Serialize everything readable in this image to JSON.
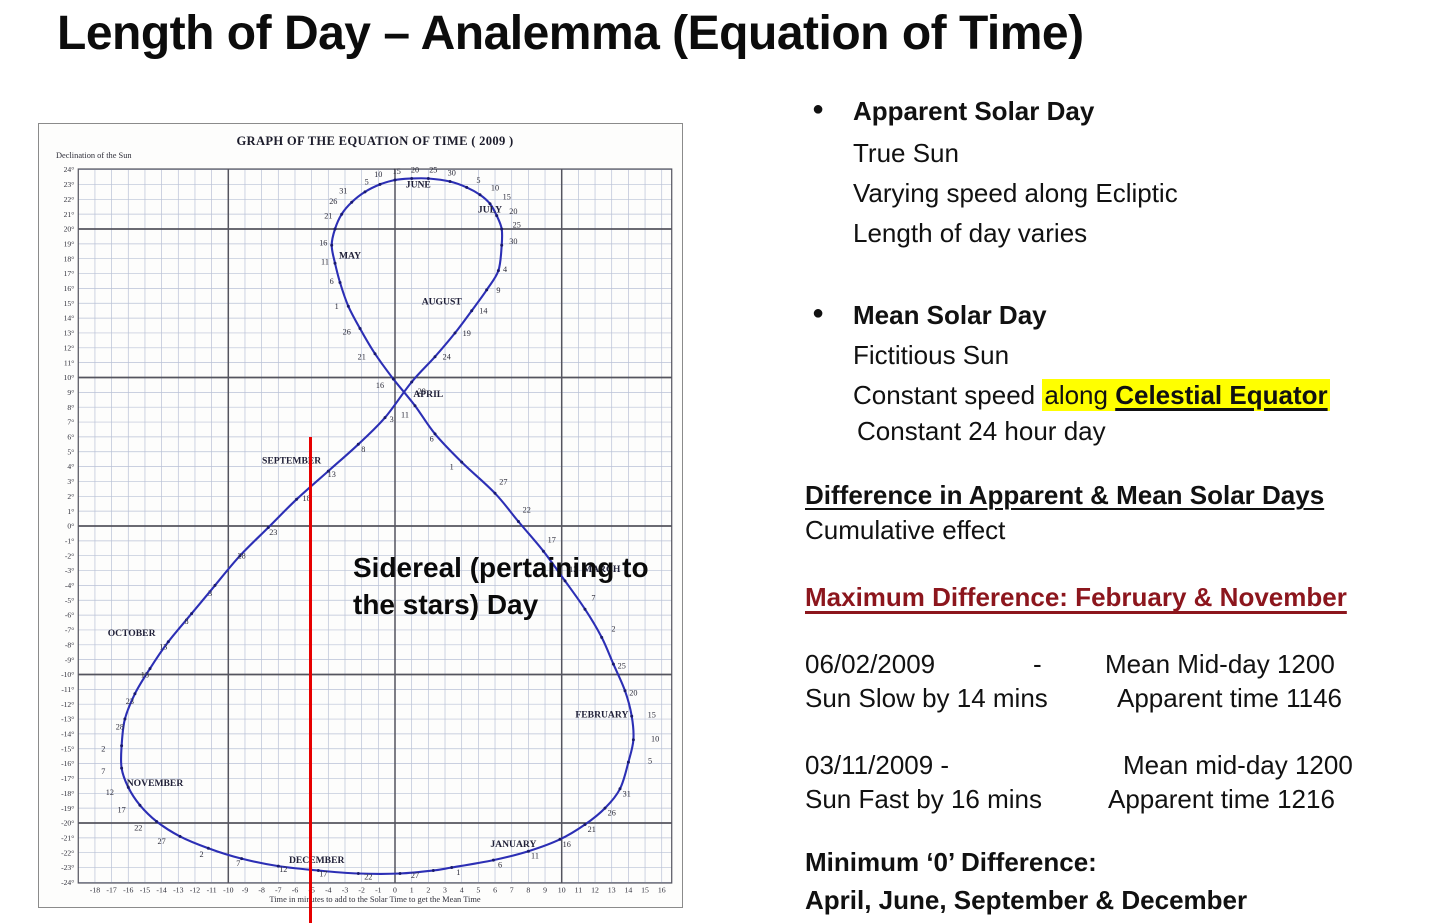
{
  "slide": {
    "title": "Length of Day – Analemma (Equation of Time)"
  },
  "overlay": {
    "sidereal_line1": "Sidereal (pertaining to",
    "sidereal_line2": "the stars) Day"
  },
  "colors": {
    "curve_blue": "#2c2fb5",
    "curve_dot": "#191a6e",
    "red_line": "#e60000",
    "maroon_heading": "#8c161d",
    "highlight_yellow": "#ffff00",
    "grid_minor": "#b9c1d6",
    "grid_major": "#54545e"
  },
  "chart_data": {
    "type": "line",
    "title": "GRAPH OF THE EQUATION OF TIME ( 2009 )",
    "ylabel": "Declination of the Sun",
    "xlabel": "Time in minutes to add to the Solar Time to get the Mean Time",
    "xlim": [
      -19,
      16.6
    ],
    "ylim": [
      -24.04,
      24.04
    ],
    "grid": true,
    "legend": "none",
    "x_ticks": [
      -18,
      -17,
      -16,
      -15,
      -14,
      -13,
      -12,
      -11,
      -10,
      -9,
      -8,
      -7,
      -6,
      -5,
      -4,
      -3,
      -2,
      -1,
      0,
      1,
      2,
      3,
      4,
      5,
      6,
      7,
      8,
      9,
      10,
      11,
      12,
      13,
      14,
      15,
      16
    ],
    "y_ticks": [
      24,
      23,
      22,
      21,
      20,
      19,
      18,
      17,
      16,
      15,
      14,
      13,
      12,
      11,
      10,
      9,
      8,
      7,
      6,
      5,
      4,
      3,
      2,
      1,
      0,
      -1,
      -2,
      -3,
      -4,
      -5,
      -6,
      -7,
      -8,
      -9,
      -10,
      -11,
      -12,
      -13,
      -14,
      -15,
      -16,
      -17,
      -18,
      -19,
      -20,
      -21,
      -22,
      -23,
      -24
    ],
    "x_major": [
      -10,
      0,
      10
    ],
    "y_major": [
      -20,
      -10,
      0,
      10,
      20
    ],
    "annotations": {
      "red_line_x": -5
    },
    "series": [
      {
        "name": "Analemma: Sun declination vs equation of time (2009)",
        "closed": true,
        "points": [
          {
            "m": "Jan",
            "d": 1,
            "x": 3.4,
            "y": -23
          },
          {
            "m": "Jan",
            "d": 6,
            "x": 5.9,
            "y": -22.5
          },
          {
            "m": "Jan",
            "d": 11,
            "x": 8,
            "y": -21.9
          },
          {
            "m": "Jan",
            "d": 16,
            "x": 9.9,
            "y": -21.1
          },
          {
            "m": "Jan",
            "d": 21,
            "x": 11.4,
            "y": -20.1
          },
          {
            "m": "Jan",
            "d": 26,
            "x": 12.6,
            "y": -19
          },
          {
            "m": "Jan",
            "d": 31,
            "x": 13.5,
            "y": -17.7
          },
          {
            "m": "Feb",
            "d": 5,
            "x": 14,
            "y": -15.9
          },
          {
            "m": "Feb",
            "d": 10,
            "x": 14.3,
            "y": -14.4
          },
          {
            "m": "Feb",
            "d": 15,
            "x": 14.2,
            "y": -12.8
          },
          {
            "m": "Feb",
            "d": 20,
            "x": 13.8,
            "y": -11.1
          },
          {
            "m": "Feb",
            "d": 25,
            "x": 13.1,
            "y": -9.3
          },
          {
            "m": "Mar",
            "d": 2,
            "x": 12.4,
            "y": -7.5
          },
          {
            "m": "Mar",
            "d": 7,
            "x": 11.4,
            "y": -5.6
          },
          {
            "m": "Mar",
            "d": 12,
            "x": 10.2,
            "y": -3.7
          },
          {
            "m": "Mar",
            "d": 17,
            "x": 8.9,
            "y": -1.7
          },
          {
            "m": "Mar",
            "d": 22,
            "x": 7.4,
            "y": 0.3
          },
          {
            "m": "Mar",
            "d": 27,
            "x": 6,
            "y": 2.2
          },
          {
            "m": "Apr",
            "d": 1,
            "x": 4,
            "y": 4.3
          },
          {
            "m": "Apr",
            "d": 6,
            "x": 2.4,
            "y": 6.2
          },
          {
            "m": "Apr",
            "d": 11,
            "x": 1.2,
            "y": 8.1
          },
          {
            "m": "Apr",
            "d": 16,
            "x": -0.1,
            "y": 9.9
          },
          {
            "m": "Apr",
            "d": 21,
            "x": -1.2,
            "y": 11.6
          },
          {
            "m": "Apr",
            "d": 26,
            "x": -2.1,
            "y": 13.3
          },
          {
            "m": "May",
            "d": 1,
            "x": -2.8,
            "y": 14.8
          },
          {
            "m": "May",
            "d": 6,
            "x": -3.3,
            "y": 16.4
          },
          {
            "m": "May",
            "d": 11,
            "x": -3.6,
            "y": 17.7
          },
          {
            "m": "May",
            "d": 16,
            "x": -3.8,
            "y": 18.9
          },
          {
            "m": "May",
            "d": 21,
            "x": -3.6,
            "y": 20
          },
          {
            "m": "May",
            "d": 26,
            "x": -3.2,
            "y": 21
          },
          {
            "m": "May",
            "d": 31,
            "x": -2.6,
            "y": 21.8
          },
          {
            "m": "Jun",
            "d": 5,
            "x": -1.8,
            "y": 22.5
          },
          {
            "m": "Jun",
            "d": 10,
            "x": -0.9,
            "y": 23
          },
          {
            "m": "Jun",
            "d": 15,
            "x": 0,
            "y": 23.3
          },
          {
            "m": "Jun",
            "d": 20,
            "x": 1,
            "y": 23.4
          },
          {
            "m": "Jun",
            "d": 25,
            "x": 2,
            "y": 23.4
          },
          {
            "m": "Jun",
            "d": 30,
            "x": 3.3,
            "y": 23.2
          },
          {
            "m": "Jul",
            "d": 5,
            "x": 4.3,
            "y": 22.8
          },
          {
            "m": "Jul",
            "d": 10,
            "x": 5.1,
            "y": 22.3
          },
          {
            "m": "Jul",
            "d": 15,
            "x": 5.7,
            "y": 21.7
          },
          {
            "m": "Jul",
            "d": 20,
            "x": 6.1,
            "y": 20.9
          },
          {
            "m": "Jul",
            "d": 25,
            "x": 6.4,
            "y": 20
          },
          {
            "m": "Jul",
            "d": 30,
            "x": 6.4,
            "y": 18.9
          },
          {
            "m": "Aug",
            "d": 4,
            "x": 6.2,
            "y": 17.2
          },
          {
            "m": "Aug",
            "d": 9,
            "x": 5.5,
            "y": 15.9
          },
          {
            "m": "Aug",
            "d": 14,
            "x": 4.6,
            "y": 14.5
          },
          {
            "m": "Aug",
            "d": 19,
            "x": 3.6,
            "y": 13
          },
          {
            "m": "Aug",
            "d": 24,
            "x": 2.4,
            "y": 11.4
          },
          {
            "m": "Aug",
            "d": 29,
            "x": 1,
            "y": 9.7
          },
          {
            "m": "Sep",
            "d": 3,
            "x": -0.6,
            "y": 7.3
          },
          {
            "m": "Sep",
            "d": 8,
            "x": -2.2,
            "y": 5.5
          },
          {
            "m": "Sep",
            "d": 13,
            "x": -4,
            "y": 3.7
          },
          {
            "m": "Sep",
            "d": 18,
            "x": -5.9,
            "y": 1.8
          },
          {
            "m": "Sep",
            "d": 23,
            "x": -7.6,
            "y": -0.1
          },
          {
            "m": "Sep",
            "d": 28,
            "x": -9.3,
            "y": -2
          },
          {
            "m": "Oct",
            "d": 3,
            "x": -10.8,
            "y": -4
          },
          {
            "m": "Oct",
            "d": 8,
            "x": -12.2,
            "y": -5.9
          },
          {
            "m": "Oct",
            "d": 13,
            "x": -13.6,
            "y": -7.8
          },
          {
            "m": "Oct",
            "d": 18,
            "x": -14.7,
            "y": -9.6
          },
          {
            "m": "Oct",
            "d": 23,
            "x": -15.6,
            "y": -11.3
          },
          {
            "m": "Oct",
            "d": 28,
            "x": -16.2,
            "y": -13
          },
          {
            "m": "Nov",
            "d": 2,
            "x": -16.4,
            "y": -14.8
          },
          {
            "m": "Nov",
            "d": 7,
            "x": -16.4,
            "y": -16.3
          },
          {
            "m": "Nov",
            "d": 12,
            "x": -16,
            "y": -17.6
          },
          {
            "m": "Nov",
            "d": 17,
            "x": -15.3,
            "y": -18.8
          },
          {
            "m": "Nov",
            "d": 22,
            "x": -14.3,
            "y": -19.9
          },
          {
            "m": "Nov",
            "d": 27,
            "x": -12.9,
            "y": -20.9
          },
          {
            "m": "Dec",
            "d": 2,
            "x": -11.2,
            "y": -21.7
          },
          {
            "m": "Dec",
            "d": 7,
            "x": -9.2,
            "y": -22.4
          },
          {
            "m": "Dec",
            "d": 12,
            "x": -7,
            "y": -22.9
          },
          {
            "m": "Dec",
            "d": 17,
            "x": -4.6,
            "y": -23.2
          },
          {
            "m": "Dec",
            "d": 22,
            "x": -2.2,
            "y": -23.4
          },
          {
            "m": "Dec",
            "d": 27,
            "x": 0.3,
            "y": -23.4
          },
          {
            "m": "Dec",
            "d": 31,
            "x": 2.3,
            "y": -23.2
          }
        ]
      }
    ],
    "month_labels": [
      {
        "t": "JANUARY",
        "x": 7.1,
        "y": -21.6
      },
      {
        "t": "FEBRUARY",
        "x": 14,
        "y": -12.9,
        "anchor": "end"
      },
      {
        "t": "MARCH",
        "x": 12.4,
        "y": -3.1
      },
      {
        "t": "APRIL",
        "x": 2,
        "y": 8.7
      },
      {
        "t": "MAY",
        "x": -2.7,
        "y": 18
      },
      {
        "t": "JUNE",
        "x": 1.4,
        "y": 22.8
      },
      {
        "t": "JULY",
        "x": 5.7,
        "y": 21.1
      },
      {
        "t": "AUGUST",
        "x": 2.8,
        "y": 14.9
      },
      {
        "t": "SEPTEMBER",
        "x": -6.2,
        "y": 4.2
      },
      {
        "t": "OCTOBER",
        "x": -15.8,
        "y": -7.4
      },
      {
        "t": "NOVEMBER",
        "x": -14.4,
        "y": -17.5
      },
      {
        "t": "DECEMBER",
        "x": -4.7,
        "y": -22.7
      }
    ],
    "day_labels": [
      {
        "t": "1",
        "x": 3.8,
        "y": -23.5
      },
      {
        "t": "6",
        "x": 6.3,
        "y": -23
      },
      {
        "t": "11",
        "x": 8.4,
        "y": -22.4
      },
      {
        "t": "16",
        "x": 10.3,
        "y": -21.6
      },
      {
        "t": "21",
        "x": 11.8,
        "y": -20.6
      },
      {
        "t": "26",
        "x": 13,
        "y": -19.5
      },
      {
        "t": "31",
        "x": 13.9,
        "y": -18.2
      },
      {
        "t": "5",
        "x": 15.3,
        "y": -16
      },
      {
        "t": "10",
        "x": 15.6,
        "y": -14.5
      },
      {
        "t": "15",
        "x": 15.4,
        "y": -12.9
      },
      {
        "t": "20",
        "x": 14.3,
        "y": -11.4
      },
      {
        "t": "25",
        "x": 13.6,
        "y": -9.6
      },
      {
        "t": "2",
        "x": 13.1,
        "y": -7.1
      },
      {
        "t": "7",
        "x": 11.9,
        "y": -5
      },
      {
        "t": "12",
        "x": 10.7,
        "y": -3.1
      },
      {
        "t": "17",
        "x": 9.4,
        "y": -1.1
      },
      {
        "t": "22",
        "x": 7.9,
        "y": 0.9
      },
      {
        "t": "27",
        "x": 6.5,
        "y": 2.8
      },
      {
        "t": "1",
        "x": 3.4,
        "y": 3.8
      },
      {
        "t": "6",
        "x": 2.2,
        "y": 5.7
      },
      {
        "t": "11",
        "x": 0.6,
        "y": 7.3
      },
      {
        "t": "16",
        "x": -0.9,
        "y": 9.3
      },
      {
        "t": "21",
        "x": -2,
        "y": 11.2
      },
      {
        "t": "26",
        "x": -2.9,
        "y": 12.9
      },
      {
        "t": "1",
        "x": -3.5,
        "y": 14.6
      },
      {
        "t": "6",
        "x": -3.8,
        "y": 16.3
      },
      {
        "t": "11",
        "x": -4.2,
        "y": 17.6
      },
      {
        "t": "16",
        "x": -4.3,
        "y": 18.9
      },
      {
        "t": "21",
        "x": -4,
        "y": 20.7
      },
      {
        "t": "26",
        "x": -3.7,
        "y": 21.7
      },
      {
        "t": "31",
        "x": -3.1,
        "y": 22.4
      },
      {
        "t": "5",
        "x": -1.7,
        "y": 23
      },
      {
        "t": "10",
        "x": -1,
        "y": 23.5
      },
      {
        "t": "15",
        "x": 0.1,
        "y": 23.7
      },
      {
        "t": "20",
        "x": 1.2,
        "y": 23.8
      },
      {
        "t": "25",
        "x": 2.3,
        "y": 23.8
      },
      {
        "t": "30",
        "x": 3.4,
        "y": 23.6
      },
      {
        "t": "5",
        "x": 5,
        "y": 23.1
      },
      {
        "t": "10",
        "x": 6,
        "y": 22.6
      },
      {
        "t": "15",
        "x": 6.7,
        "y": 22
      },
      {
        "t": "20",
        "x": 7.1,
        "y": 21
      },
      {
        "t": "25",
        "x": 7.3,
        "y": 20.1
      },
      {
        "t": "30",
        "x": 7.1,
        "y": 19
      },
      {
        "t": "4",
        "x": 6.6,
        "y": 17.1
      },
      {
        "t": "9",
        "x": 6.2,
        "y": 15.7
      },
      {
        "t": "14",
        "x": 5.3,
        "y": 14.3
      },
      {
        "t": "19",
        "x": 4.3,
        "y": 12.8
      },
      {
        "t": "24",
        "x": 3.1,
        "y": 11.2
      },
      {
        "t": "29",
        "x": 1.6,
        "y": 8.9
      },
      {
        "t": "3",
        "x": -0.2,
        "y": 7
      },
      {
        "t": "8",
        "x": -1.9,
        "y": 5
      },
      {
        "t": "13",
        "x": -3.8,
        "y": 3.3
      },
      {
        "t": "18",
        "x": -5.3,
        "y": 1.7
      },
      {
        "t": "23",
        "x": -7.3,
        "y": -0.6
      },
      {
        "t": "28",
        "x": -9.2,
        "y": -2.2
      },
      {
        "t": "3",
        "x": -11.1,
        "y": -4.7
      },
      {
        "t": "8",
        "x": -12.5,
        "y": -6.6
      },
      {
        "t": "13",
        "x": -13.9,
        "y": -8.3
      },
      {
        "t": "18",
        "x": -15,
        "y": -10.2
      },
      {
        "t": "23",
        "x": -15.9,
        "y": -12
      },
      {
        "t": "28",
        "x": -16.5,
        "y": -13.7
      },
      {
        "t": "2",
        "x": -17.5,
        "y": -15.2
      },
      {
        "t": "7",
        "x": -17.5,
        "y": -16.7
      },
      {
        "t": "12",
        "x": -17.1,
        "y": -18.1
      },
      {
        "t": "17",
        "x": -16.4,
        "y": -19.3
      },
      {
        "t": "22",
        "x": -15.4,
        "y": -20.5
      },
      {
        "t": "27",
        "x": -14,
        "y": -21.4
      },
      {
        "t": "2",
        "x": -11.6,
        "y": -22.3
      },
      {
        "t": "7",
        "x": -9.4,
        "y": -22.9
      },
      {
        "t": "12",
        "x": -6.7,
        "y": -23.3
      },
      {
        "t": "17",
        "x": -4.3,
        "y": -23.6
      },
      {
        "t": "22",
        "x": -1.6,
        "y": -23.8
      },
      {
        "t": "27",
        "x": 1.2,
        "y": -23.7
      }
    ]
  },
  "right_panel": {
    "bullet_glyph": "●",
    "apparent": {
      "title": "Apparent Solar Day",
      "line1": "True Sun",
      "line2": "Varying speed along Ecliptic",
      "line3": "Length of day varies"
    },
    "mean": {
      "title": "Mean Solar Day",
      "line1": "Fictitious Sun",
      "line2_prefix": "Constant speed ",
      "line2_highlight_regular": "along ",
      "line2_highlight_bold": "Celestial Equator",
      "line3": "Constant 24 hour day"
    },
    "difference_heading": "Difference in Apparent & Mean Solar Days",
    "difference_note": "Cumulative effect",
    "maximum_heading": "Maximum Difference: February & November",
    "case_feb": {
      "date": "06/02/2009",
      "dash": "-",
      "mean": "Mean Mid-day 1200",
      "deviation": "Sun Slow by 14 mins",
      "apparent": "Apparent time 1146"
    },
    "case_nov": {
      "date": "03/11/2009 -",
      "mean": "Mean mid-day 1200",
      "deviation": "Sun Fast by 16 mins",
      "apparent": "Apparent time 1216"
    },
    "minimum_line1": "Minimum ‘0’ Difference:",
    "minimum_line2": "April, June, September & December"
  }
}
